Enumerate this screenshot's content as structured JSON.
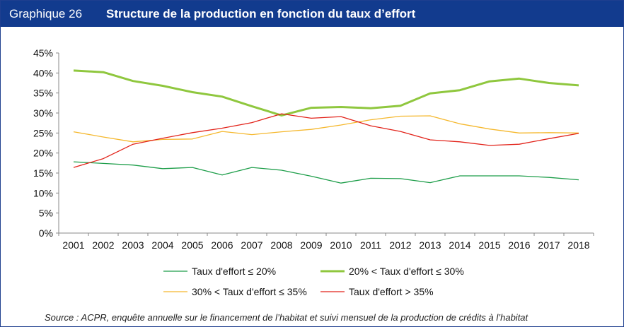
{
  "header": {
    "figure_number": "Graphique 26",
    "title": "Structure de la production en fonction du taux d’effort"
  },
  "source": "Source : ACPR, enquête annuelle sur le financement de l’habitat et suivi mensuel de la production de crédits à l’habitat",
  "chart_data": {
    "type": "line",
    "x": [
      "2001",
      "2002",
      "2003",
      "2004",
      "2005",
      "2006",
      "2007",
      "2008",
      "2009",
      "2010",
      "2011",
      "2012",
      "2013",
      "2014",
      "2015",
      "2016",
      "2017",
      "2018"
    ],
    "ylim": [
      0,
      45
    ],
    "yticks": [
      "0%",
      "5%",
      "10%",
      "15%",
      "20%",
      "25%",
      "30%",
      "35%",
      "40%",
      "45%"
    ],
    "grid": false,
    "legend_position": "bottom",
    "series": [
      {
        "name": "Taux d'effort ≤ 20%",
        "color": "#1e9e4a",
        "width": 1.3,
        "values": [
          17.8,
          17.4,
          17.0,
          16.1,
          16.4,
          14.5,
          16.4,
          15.7,
          14.2,
          12.5,
          13.7,
          13.6,
          12.6,
          14.3,
          14.3,
          14.3,
          13.9,
          13.3
        ]
      },
      {
        "name": "20% < Taux d'effort ≤ 30%",
        "color": "#8fc73e",
        "width": 3,
        "values": [
          40.6,
          40.2,
          38.0,
          36.8,
          35.2,
          34.1,
          31.7,
          29.4,
          31.3,
          31.5,
          31.2,
          31.8,
          34.9,
          35.7,
          37.9,
          38.6,
          37.5,
          36.9
        ]
      },
      {
        "name": "30% < Taux d'effort ≤ 35%",
        "color": "#f5b82e",
        "width": 1.3,
        "values": [
          25.3,
          24.0,
          22.8,
          23.4,
          23.5,
          25.4,
          24.6,
          25.3,
          25.9,
          27.0,
          28.3,
          29.2,
          29.3,
          27.3,
          26.0,
          25.0,
          25.1,
          25.0
        ]
      },
      {
        "name": "Taux d'effort > 35%",
        "color": "#e2231a",
        "width": 1.3,
        "values": [
          16.4,
          18.6,
          22.2,
          23.7,
          25.1,
          26.2,
          27.6,
          29.8,
          28.7,
          29.1,
          26.8,
          25.4,
          23.3,
          22.8,
          21.9,
          22.2,
          23.6,
          24.9
        ]
      }
    ]
  }
}
